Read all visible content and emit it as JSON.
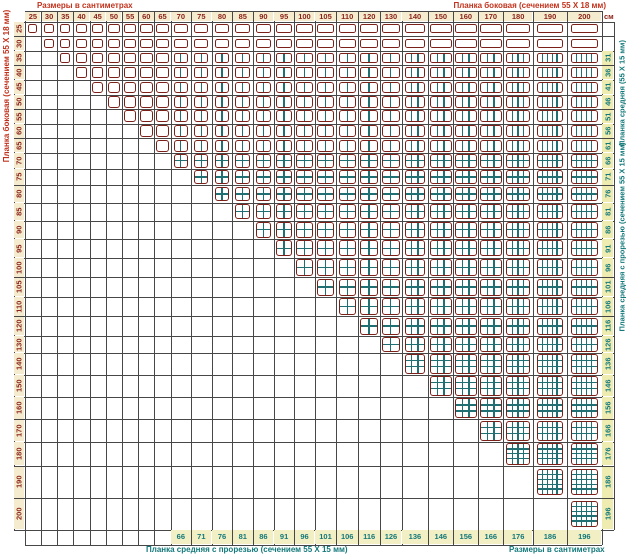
{
  "title_top_left": "Размеры в сантиметрах",
  "label_top_right": "Планка боковая (сечением 55 Х 18 мм)",
  "label_left_vertical": "Планка боковая (сечением 55 Х 18 мм)",
  "label_right_vertical_upper": "Планка средняя (55 Х 15 мм)",
  "label_right_vertical_lower": "Планка средняя с прорезью (сечением 55 Х 15 мм)",
  "label_bottom": "Планка средняя с прорезью (сечением 55 Х 15 мм)",
  "label_bottom_right": "Размеры в сантиметрах",
  "unit": "см",
  "axes": {
    "top_cm": [
      25,
      30,
      35,
      40,
      45,
      50,
      55,
      60,
      65,
      70,
      75,
      80,
      85,
      90,
      95,
      100,
      105,
      110,
      120,
      130,
      140,
      150,
      160,
      170,
      180,
      190,
      200
    ],
    "left_cm": [
      25,
      30,
      35,
      40,
      45,
      50,
      55,
      60,
      65,
      70,
      75,
      80,
      85,
      90,
      95,
      100,
      105,
      110,
      120,
      130,
      140,
      150,
      160,
      170,
      180,
      190,
      200
    ],
    "bottom_plank_lengths_cm": [
      66,
      71,
      76,
      81,
      86,
      91,
      96,
      101,
      106,
      116,
      126,
      136,
      146,
      156,
      166,
      176,
      186,
      196
    ],
    "bottom_plank_first_column_cm": 70,
    "right_plank_lengths_cm": [
      31,
      36,
      41,
      46,
      51,
      56,
      61,
      66,
      71,
      76,
      81,
      86,
      91,
      96,
      101,
      106,
      116,
      126,
      136,
      146,
      156,
      166,
      176,
      186,
      196
    ],
    "right_plank_first_row_cm": 35
  },
  "matrix": {
    "cell_rule": "diagram drawn only where width >= height (upper triangle)",
    "vertical_dividers_require_height_cm": 35,
    "horizontal_dividers_require_height_cm": 70,
    "middle_plank_length_offset_cm": -4,
    "dividers_by_size_cm": {
      "25": 0,
      "30": 0,
      "35": 0,
      "40": 0,
      "45": 0,
      "50": 0,
      "55": 0,
      "60": 0,
      "65": 0,
      "70": 1,
      "75": 1,
      "80": 1,
      "85": 1,
      "90": 1,
      "95": 1,
      "100": 1,
      "105": 1,
      "110": 1,
      "120": 1,
      "130": 1,
      "140": 2,
      "150": 2,
      "160": 2,
      "170": 2,
      "180": 3,
      "190": 4,
      "200": 4
    }
  },
  "colors": {
    "axis_red": "#8b2318",
    "title_red": "#c2321c",
    "teal": "#12787a",
    "frame_maroon": "#7a2018",
    "teal_line": "#1f6f73",
    "grid": "#474747",
    "tan_top": "#f5ecd0",
    "tan_left": "#f5ecd0",
    "tan_right": "#efecb2",
    "tan_bottom": "#f2efc4",
    "background": "#ffffff"
  }
}
